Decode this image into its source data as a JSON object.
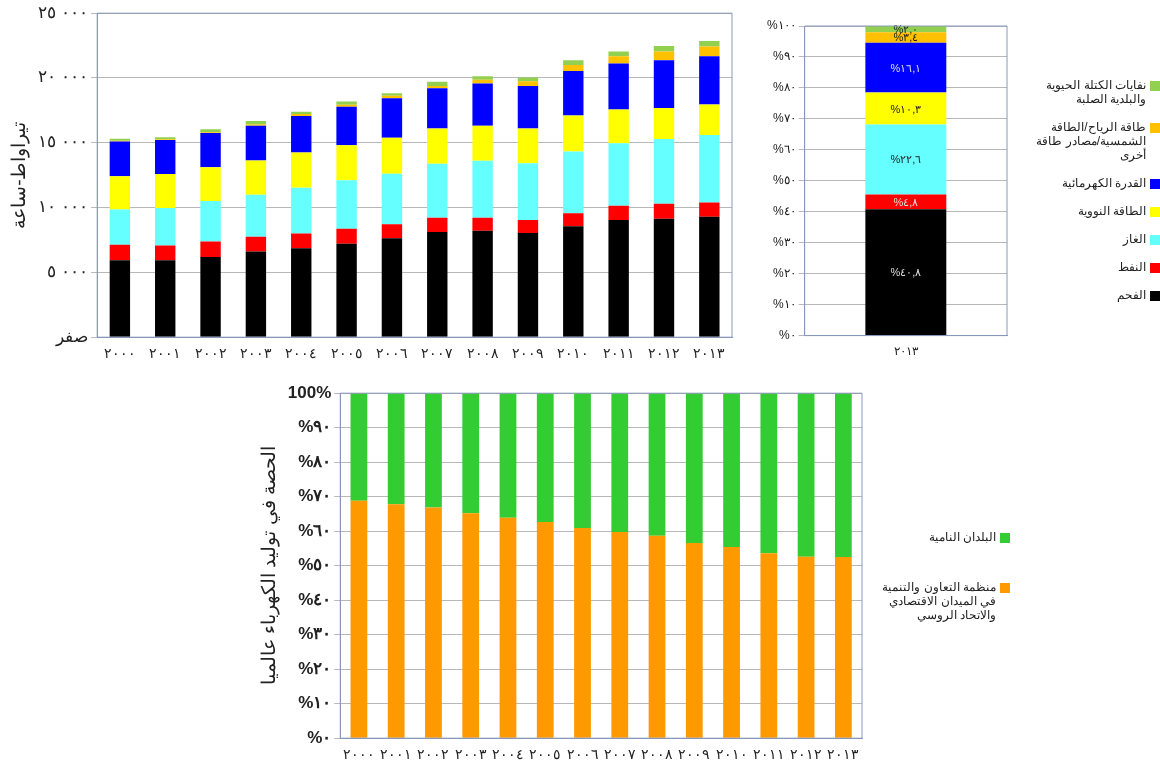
{
  "chart_data": [
    {
      "type": "bar",
      "stacked": true,
      "ylabel": "تيراواط-ساعة",
      "categories": [
        "٢٠٠٠",
        "٢٠٠١",
        "٢٠٠٢",
        "٢٠٠٣",
        "٢٠٠٤",
        "٢٠٠٥",
        "٢٠٠٦",
        "٢٠٠٧",
        "٢٠٠٨",
        "٢٠٠٩",
        "٢٠١٠",
        "٢٠١١",
        "٢٠١٢",
        "٢٠١٣"
      ],
      "series": [
        {
          "color": "#000000",
          "values": [
            5930,
            5930,
            6180,
            6610,
            6860,
            7210,
            7640,
            8110,
            8210,
            8040,
            8570,
            9040,
            9140,
            9290
          ]
        },
        {
          "color": "#ff0000",
          "values": [
            1210,
            1140,
            1210,
            1140,
            1140,
            1150,
            1070,
            1100,
            1000,
            1000,
            1000,
            1100,
            1150,
            1100
          ]
        },
        {
          "color": "#66ffff",
          "values": [
            2710,
            2890,
            3110,
            3250,
            3540,
            3750,
            3900,
            4180,
            4400,
            4390,
            4750,
            4820,
            5000,
            5220
          ]
        },
        {
          "color": "#ffff00",
          "values": [
            2570,
            2640,
            2610,
            2640,
            2710,
            2710,
            2780,
            2720,
            2710,
            2680,
            2790,
            2610,
            2390,
            2350
          ]
        },
        {
          "color": "#0000ff",
          "values": [
            2680,
            2610,
            2640,
            2680,
            2820,
            2970,
            3040,
            3100,
            3250,
            3280,
            3430,
            3540,
            3680,
            3720
          ]
        },
        {
          "color": "#ffc000",
          "values": [
            50,
            60,
            70,
            100,
            150,
            140,
            200,
            180,
            290,
            360,
            470,
            570,
            680,
            750
          ]
        },
        {
          "color": "#92d050",
          "values": [
            160,
            160,
            220,
            260,
            170,
            250,
            190,
            320,
            280,
            290,
            350,
            360,
            420,
            430
          ]
        }
      ],
      "ylim": [
        0,
        25000
      ],
      "yticks": [
        {
          "value": 0,
          "label": "صفر"
        },
        {
          "value": 5000,
          "label": "٥ ٠٠٠"
        },
        {
          "value": 10000,
          "label": "١٠ ٠٠٠"
        },
        {
          "value": 15000,
          "label": "١٥ ٠٠٠"
        },
        {
          "value": 20000,
          "label": "٢٠ ٠٠٠"
        },
        {
          "value": 25000,
          "label": "٢٥ ٠٠٠"
        }
      ],
      "grid": "y"
    },
    {
      "type": "bar",
      "stacked": true,
      "categories": [
        "٢٠١٣"
      ],
      "series": [
        {
          "name": "الفحم",
          "color": "#000000",
          "values": [
            40.8
          ],
          "value_labels": [
            "%٤٠,٨"
          ]
        },
        {
          "name": "النفط",
          "color": "#ff0000",
          "values": [
            4.8
          ],
          "value_labels": [
            "%٤,٨"
          ]
        },
        {
          "name": "الغاز",
          "color": "#66ffff",
          "values": [
            22.6
          ],
          "value_labels": [
            "%٢٢,٦"
          ]
        },
        {
          "name": "الطاقة النووية",
          "color": "#ffff00",
          "values": [
            10.3
          ],
          "value_labels": [
            "%١٠,٣"
          ]
        },
        {
          "name": "القدرة الكهرمائية",
          "color": "#0000ff",
          "values": [
            16.1
          ],
          "value_labels": [
            "%١٦,١"
          ]
        },
        {
          "name": "طاقة الرياح/الطاقة الشمسية/مصادر طاقة أخرى",
          "color": "#ffc000",
          "values": [
            3.4
          ],
          "value_labels": [
            "%٣,٤"
          ]
        },
        {
          "name": "نفايات الكتلة الحيوية والبلدية الصلبة",
          "color": "#92d050",
          "values": [
            2.0
          ],
          "value_labels": [
            "%٢,٠"
          ]
        }
      ],
      "ylim": [
        0,
        100
      ],
      "yticks": [
        {
          "value": 0,
          "label": "%٠"
        },
        {
          "value": 10,
          "label": "%١٠"
        },
        {
          "value": 20,
          "label": "%٢٠"
        },
        {
          "value": 30,
          "label": "%٣٠"
        },
        {
          "value": 40,
          "label": "%٤٠"
        },
        {
          "value": 50,
          "label": "%٥٠"
        },
        {
          "value": 60,
          "label": "%٦٠"
        },
        {
          "value": 70,
          "label": "%٧٠"
        },
        {
          "value": 80,
          "label": "%٨٠"
        },
        {
          "value": 90,
          "label": "%٩٠"
        },
        {
          "value": 100,
          "label": "%١٠٠"
        }
      ],
      "grid": "y",
      "legend": "right"
    },
    {
      "type": "bar",
      "stacked": true,
      "ylabel": "الحصة في توليد الكهرباء عالميا",
      "categories": [
        "٢٠٠٠",
        "٢٠٠١",
        "٢٠٠٢",
        "٢٠٠٣",
        "٢٠٠٤",
        "٢٠٠٥",
        "٢٠٠٦",
        "٢٠٠٧",
        "٢٠٠٨",
        "٢٠٠٩",
        "٢٠١٠",
        "٢٠١١",
        "٢٠١٢",
        "٢٠١٣"
      ],
      "series": [
        {
          "name": "منظمة التعاون والتنمية في الميدان الاقتصادي والاتحاد الروسي",
          "color": "#ff9900",
          "values": [
            68.8,
            67.8,
            66.9,
            65.2,
            63.9,
            62.7,
            60.9,
            59.8,
            58.7,
            56.6,
            55.4,
            53.6,
            52.6,
            52.5
          ]
        },
        {
          "name": "البلدان النامية",
          "color": "#33cc33",
          "values": [
            31.2,
            32.2,
            33.1,
            34.8,
            36.1,
            37.3,
            39.1,
            40.2,
            41.3,
            43.4,
            44.6,
            46.4,
            47.4,
            47.5
          ]
        }
      ],
      "ylim": [
        0,
        100
      ],
      "yticks": [
        {
          "value": 0,
          "label": "%٠"
        },
        {
          "value": 10,
          "label": "%١٠"
        },
        {
          "value": 20,
          "label": "%٢٠"
        },
        {
          "value": 30,
          "label": "%٣٠"
        },
        {
          "value": 40,
          "label": "%٤٠"
        },
        {
          "value": 50,
          "label": "%٥٠"
        },
        {
          "value": 60,
          "label": "%٦٠"
        },
        {
          "value": 70,
          "label": "%٧٠"
        },
        {
          "value": 80,
          "label": "%٨٠"
        },
        {
          "value": 90,
          "label": "%٩٠"
        },
        {
          "value": 100,
          "label": "100%"
        }
      ],
      "grid": "y",
      "legend": "right"
    }
  ]
}
